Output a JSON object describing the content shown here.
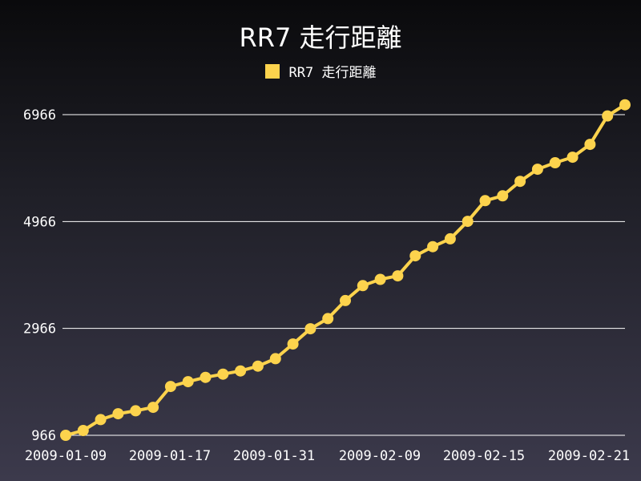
{
  "chart_data": {
    "type": "line",
    "title": "RR7 走行距離",
    "legend": "top-center",
    "grid": true,
    "color": "#fcd34d",
    "series": [
      {
        "name": "RR7 走行距離",
        "values": [
          966,
          1056,
          1260,
          1370,
          1425,
          1490,
          1880,
          1970,
          2050,
          2110,
          2170,
          2260,
          2400,
          2675,
          2960,
          3150,
          3487,
          3766,
          3883,
          3950,
          4325,
          4496,
          4643,
          4969,
          5356,
          5446,
          5718,
          5945,
          6066,
          6170,
          6410,
          6942,
          7151
        ]
      }
    ],
    "xticks": [
      "2009-01-09",
      "2009-01-17",
      "2009-01-31",
      "2009-02-09",
      "2009-02-15",
      "2009-02-21"
    ],
    "yticks": [
      966,
      2966,
      4966,
      6966
    ],
    "ylim": [
      966,
      6966
    ]
  }
}
